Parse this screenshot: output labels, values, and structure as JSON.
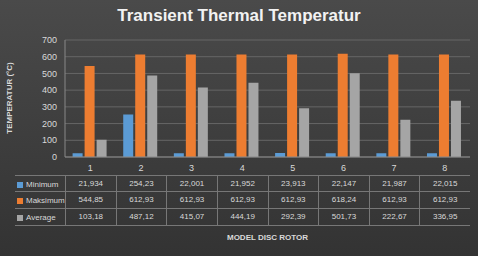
{
  "chart_data": {
    "type": "bar",
    "title": "Transient Thermal Temperatur",
    "x_label": "MODEL DISC ROTOR",
    "y_label": "TEMPERATUR (°C)",
    "categories": [
      "1",
      "2",
      "3",
      "4",
      "5",
      "6",
      "7",
      "8"
    ],
    "series": [
      {
        "name": "Minimum",
        "color": "#5b9bd5",
        "values": [
          21.934,
          254.23,
          22.001,
          21.952,
          23.913,
          22.147,
          21.987,
          22.015
        ],
        "value_labels": [
          "21,934",
          "254,23",
          "22,001",
          "21,952",
          "23,913",
          "22,147",
          "21,987",
          "22,015"
        ]
      },
      {
        "name": "Maksimum",
        "color": "#ed7d31",
        "values": [
          544.85,
          612.93,
          612.93,
          612.93,
          612.93,
          618.24,
          612.93,
          612.93
        ],
        "value_labels": [
          "544,85",
          "612,93",
          "612,93",
          "612,93",
          "612,93",
          "618,24",
          "612,93",
          "612,93"
        ]
      },
      {
        "name": "Average",
        "color": "#a5a5a5",
        "values": [
          103.18,
          487.12,
          415.07,
          444.19,
          292.39,
          501.73,
          222.67,
          336.95
        ],
        "value_labels": [
          "103,18",
          "487,12",
          "415,07",
          "444,19",
          "292,39",
          "501,73",
          "222,67",
          "336,95"
        ]
      }
    ],
    "ylim": [
      0,
      700
    ],
    "yticks": [
      0,
      100,
      200,
      300,
      400,
      500,
      600,
      700
    ],
    "grid": true
  }
}
